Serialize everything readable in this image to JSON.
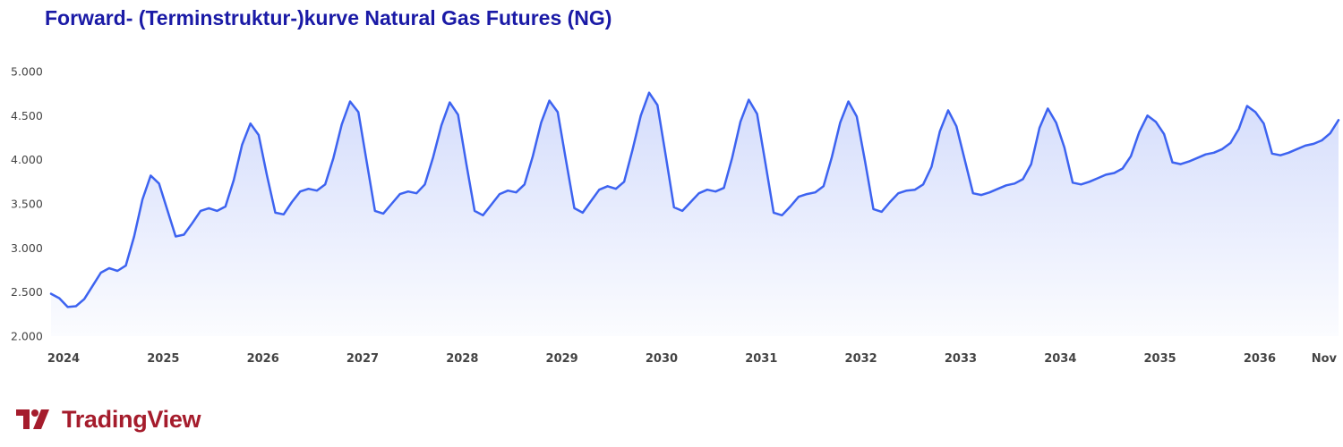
{
  "title": "Forward- (Terminstruktur-)kurve Natural Gas Futures (NG)",
  "brand": {
    "name": "TradingView"
  },
  "colors": {
    "line": "#3d63f0",
    "title": "#1a1aa6",
    "brand": "#a51c2c",
    "axis_text": "#444444"
  },
  "chart_data": {
    "type": "area",
    "title": "Forward- (Terminstruktur-)kurve Natural Gas Futures (NG)",
    "xlabel": "",
    "ylabel": "",
    "ylim": [
      2.0,
      5.0
    ],
    "y_ticks": [
      "2.000",
      "2.500",
      "3.000",
      "3.500",
      "4.000",
      "4.500",
      "5.000"
    ],
    "x_ticks": [
      "2024",
      "2025",
      "2026",
      "2027",
      "2028",
      "2029",
      "2030",
      "2031",
      "2032",
      "2033",
      "2034",
      "2035",
      "2036",
      "Nov"
    ],
    "grid": false,
    "legend": "none",
    "series": [
      {
        "start": "2024-01",
        "values": [
          2.48,
          2.43,
          2.33,
          2.34,
          2.42,
          2.57,
          2.72,
          2.77,
          2.74,
          2.8,
          3.13,
          3.55,
          3.82,
          3.73,
          3.43,
          3.13,
          3.15,
          3.28,
          3.42,
          3.45,
          3.42,
          3.47,
          3.77,
          4.17,
          4.41,
          4.28,
          3.82,
          3.4,
          3.38,
          3.52,
          3.64,
          3.67,
          3.65,
          3.72,
          4.02,
          4.4,
          4.66,
          4.54,
          3.98,
          3.42,
          3.39,
          3.5,
          3.61,
          3.64,
          3.62,
          3.72,
          4.03,
          4.39,
          4.65,
          4.51,
          3.95,
          3.42,
          3.37,
          3.49,
          3.61,
          3.65,
          3.63,
          3.72,
          4.04,
          4.42,
          4.67,
          4.54,
          3.99,
          3.45,
          3.4,
          3.53,
          3.66,
          3.7,
          3.67,
          3.75,
          4.11,
          4.5,
          4.76,
          4.62,
          4.05,
          3.46,
          3.42,
          3.52,
          3.62,
          3.66,
          3.64,
          3.68,
          4.02,
          4.43,
          4.68,
          4.52,
          3.96,
          3.4,
          3.37,
          3.47,
          3.58,
          3.61,
          3.63,
          3.7,
          4.03,
          4.42,
          4.66,
          4.49,
          3.98,
          3.44,
          3.41,
          3.52,
          3.62,
          3.65,
          3.66,
          3.72,
          3.92,
          4.32,
          4.56,
          4.38,
          4.0,
          3.62,
          3.6,
          3.63,
          3.67,
          3.71,
          3.73,
          3.78,
          3.95,
          4.36,
          4.58,
          4.42,
          4.14,
          3.74,
          3.72,
          3.75,
          3.79,
          3.83,
          3.85,
          3.9,
          4.04,
          4.31,
          4.5,
          4.43,
          4.29,
          3.97,
          3.95,
          3.98,
          4.02,
          4.06,
          4.08,
          4.12,
          4.19,
          4.35,
          4.61,
          4.54,
          4.41,
          4.07,
          4.05,
          4.08,
          4.12,
          4.16,
          4.18,
          4.22,
          4.3,
          4.45
        ]
      }
    ]
  }
}
